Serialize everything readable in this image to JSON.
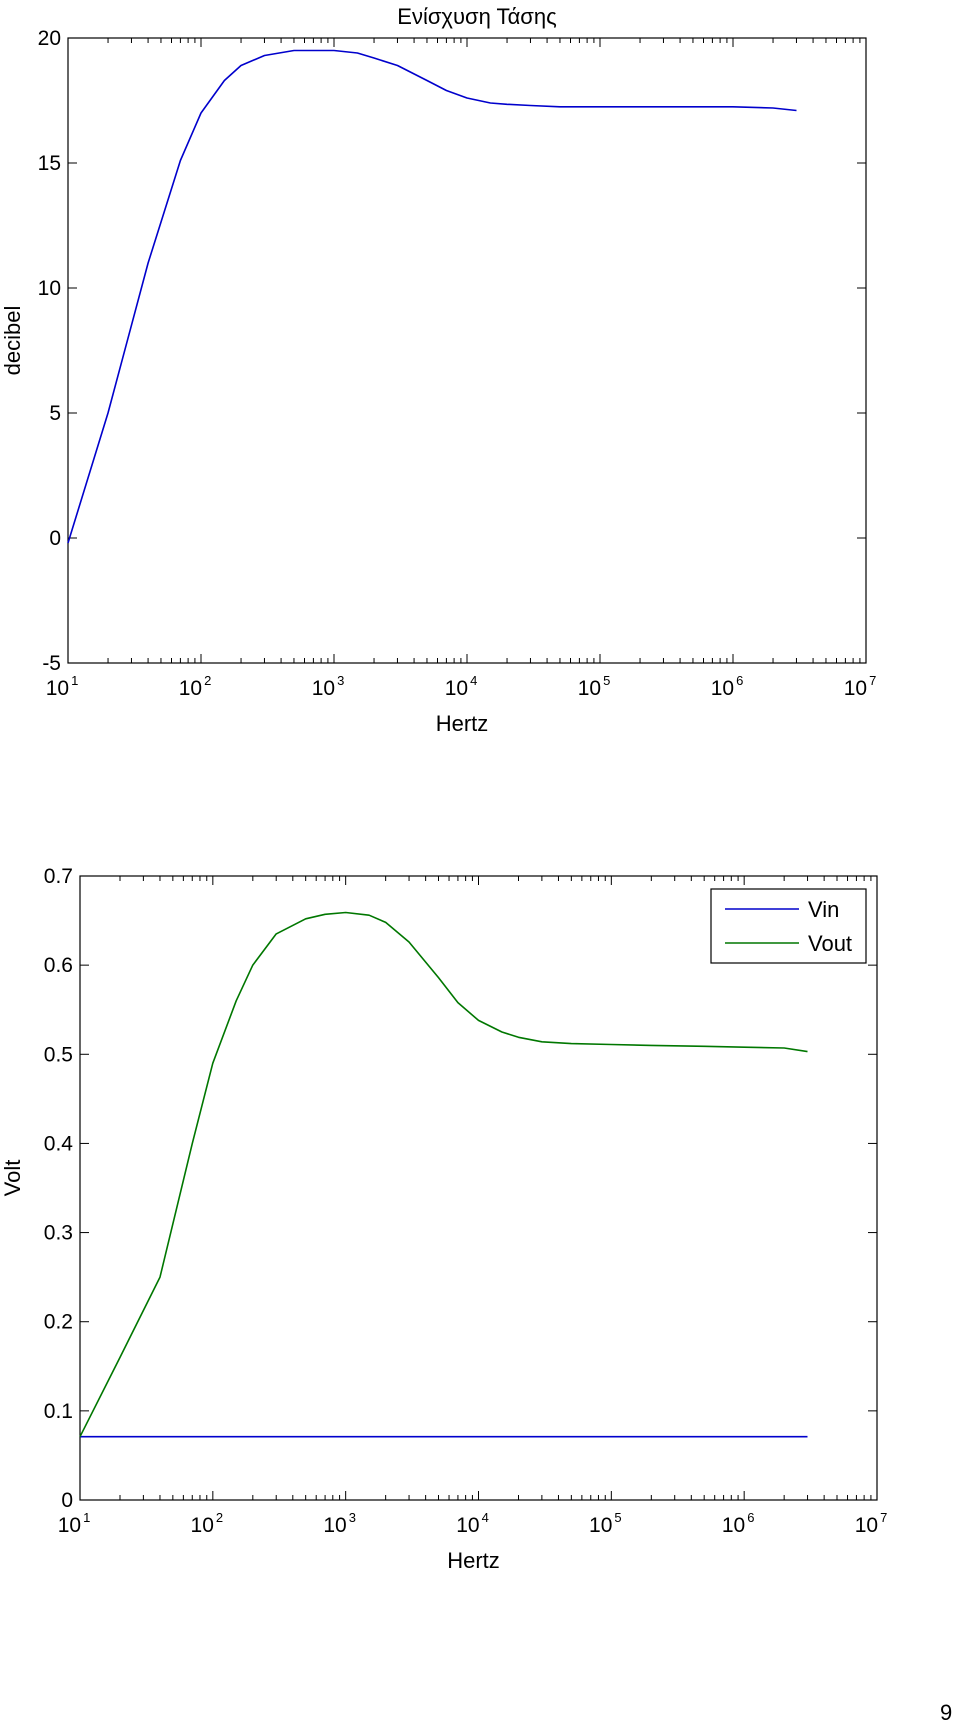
{
  "page": {
    "number": "9"
  },
  "chart_data": [
    {
      "type": "line",
      "title": "Ενίσχυση Τάσης",
      "xlabel": "Hertz",
      "ylabel": "decibel",
      "x_scale": "log",
      "xlim": [
        10,
        10000000
      ],
      "ylim": [
        -5,
        20
      ],
      "y_ticks": [
        {
          "value": -5,
          "label": "-5"
        },
        {
          "value": 0,
          "label": "0"
        },
        {
          "value": 5,
          "label": "5"
        },
        {
          "value": 10,
          "label": "10"
        },
        {
          "value": 15,
          "label": "15"
        },
        {
          "value": 20,
          "label": "20"
        }
      ],
      "x_ticks": [
        {
          "value": 10,
          "base": "10",
          "exp": "1"
        },
        {
          "value": 100,
          "base": "10",
          "exp": "2"
        },
        {
          "value": 1000,
          "base": "10",
          "exp": "3"
        },
        {
          "value": 10000,
          "base": "10",
          "exp": "4"
        },
        {
          "value": 100000,
          "base": "10",
          "exp": "5"
        },
        {
          "value": 1000000,
          "base": "10",
          "exp": "6"
        },
        {
          "value": 10000000,
          "base": "10",
          "exp": "7"
        }
      ],
      "grid": false,
      "series": [
        {
          "color": "#0000cc",
          "x": [
            10,
            20,
            40,
            70,
            100,
            150,
            200,
            300,
            500,
            700,
            1000,
            1500,
            2000,
            3000,
            5000,
            7000,
            10000,
            15000,
            20000,
            30000,
            50000,
            100000,
            200000,
            500000,
            1000000,
            2000000,
            3000000
          ],
          "y": [
            -0.2,
            5.0,
            11.0,
            15.1,
            17.0,
            18.3,
            18.9,
            19.3,
            19.5,
            19.5,
            19.5,
            19.4,
            19.2,
            18.9,
            18.3,
            17.9,
            17.6,
            17.4,
            17.35,
            17.3,
            17.25,
            17.25,
            17.25,
            17.25,
            17.25,
            17.2,
            17.1
          ]
        }
      ]
    },
    {
      "type": "line",
      "title": "",
      "xlabel": "Hertz",
      "ylabel": "Volt",
      "x_scale": "log",
      "xlim": [
        10,
        10000000
      ],
      "ylim": [
        0,
        0.7
      ],
      "y_ticks": [
        {
          "value": 0,
          "label": "0"
        },
        {
          "value": 0.1,
          "label": "0.1"
        },
        {
          "value": 0.2,
          "label": "0.2"
        },
        {
          "value": 0.3,
          "label": "0.3"
        },
        {
          "value": 0.4,
          "label": "0.4"
        },
        {
          "value": 0.5,
          "label": "0.5"
        },
        {
          "value": 0.6,
          "label": "0.6"
        },
        {
          "value": 0.7,
          "label": "0.7"
        }
      ],
      "x_ticks": [
        {
          "value": 10,
          "base": "10",
          "exp": "1"
        },
        {
          "value": 100,
          "base": "10",
          "exp": "2"
        },
        {
          "value": 1000,
          "base": "10",
          "exp": "3"
        },
        {
          "value": 10000,
          "base": "10",
          "exp": "4"
        },
        {
          "value": 100000,
          "base": "10",
          "exp": "5"
        },
        {
          "value": 1000000,
          "base": "10",
          "exp": "6"
        },
        {
          "value": 10000000,
          "base": "10",
          "exp": "7"
        }
      ],
      "grid": false,
      "legend": {
        "position": "top-right"
      },
      "series": [
        {
          "name": "Vin",
          "color": "#0000cc",
          "x": [
            10,
            3000000
          ],
          "y": [
            0.071,
            0.071
          ]
        },
        {
          "name": "Vout",
          "color": "#007700",
          "x": [
            10,
            20,
            40,
            70,
            100,
            150,
            200,
            300,
            500,
            700,
            1000,
            1500,
            2000,
            3000,
            5000,
            7000,
            10000,
            15000,
            20000,
            30000,
            50000,
            100000,
            200000,
            500000,
            1000000,
            2000000,
            3000000
          ],
          "y": [
            0.071,
            0.16,
            0.25,
            0.4,
            0.49,
            0.56,
            0.6,
            0.635,
            0.652,
            0.657,
            0.659,
            0.656,
            0.648,
            0.626,
            0.586,
            0.558,
            0.538,
            0.525,
            0.519,
            0.514,
            0.512,
            0.511,
            0.51,
            0.509,
            0.508,
            0.507,
            0.503
          ]
        }
      ]
    }
  ]
}
